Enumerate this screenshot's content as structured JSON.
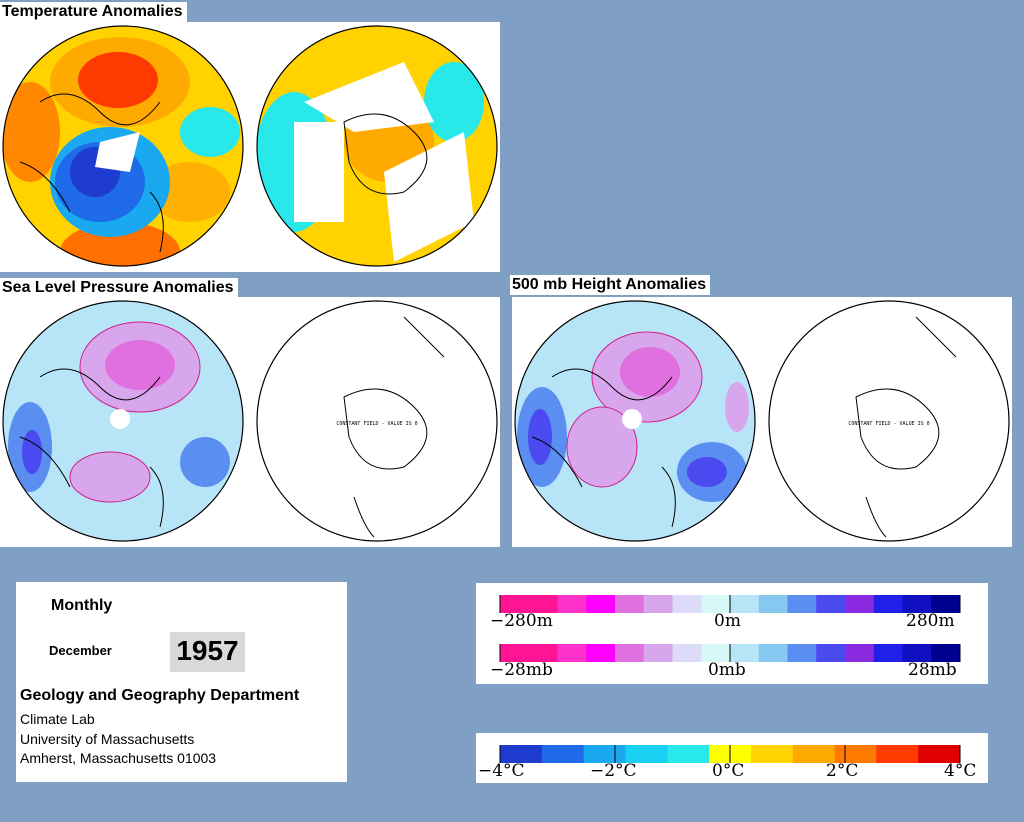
{
  "panels": {
    "temperature": {
      "title": "Temperature Anomalies"
    },
    "slp": {
      "title": "Sea Level Pressure Anomalies",
      "south_note": "CONSTANT FIELD - VALUE IS 0"
    },
    "height500": {
      "title": "500 mb Height Anomalies",
      "south_note": "CONSTANT FIELD - VALUE IS 0"
    }
  },
  "info": {
    "period": "Monthly",
    "month": "December",
    "year": "1957",
    "department": "Geology and Geography Department",
    "lab": "Climate Lab",
    "university": "University of Massachusetts",
    "address": "Amherst, Massachusetts 01003"
  },
  "legends": {
    "height": {
      "min": "−280m",
      "mid": "0m",
      "max": "280m"
    },
    "pressure": {
      "min": "−28mb",
      "mid": "0mb",
      "max": "28mb"
    },
    "temperature": {
      "ticks": [
        "−4°C",
        "−2°C",
        "0°C",
        "2°C",
        "4°C"
      ]
    }
  },
  "colors": {
    "background": "#7f9fc4",
    "anomaly_scale": [
      "#ff1493",
      "#ff1493",
      "#ff33cc",
      "#ff00ff",
      "#e070e0",
      "#d8a6ec",
      "#dcdcf8",
      "#d8f8f8",
      "#b8e4f8",
      "#86c8f0",
      "#5a8ef0",
      "#4a4af0",
      "#8a2ae0",
      "#2020e8",
      "#1010c0",
      "#000090"
    ],
    "temperature_scale": [
      "#1e3cd0",
      "#1e6ae8",
      "#1aa8f0",
      "#1ad0f0",
      "#28e8ea",
      "#ffff00",
      "#ffd400",
      "#ffaa00",
      "#ff7a00",
      "#ff3a00",
      "#e00000"
    ]
  }
}
